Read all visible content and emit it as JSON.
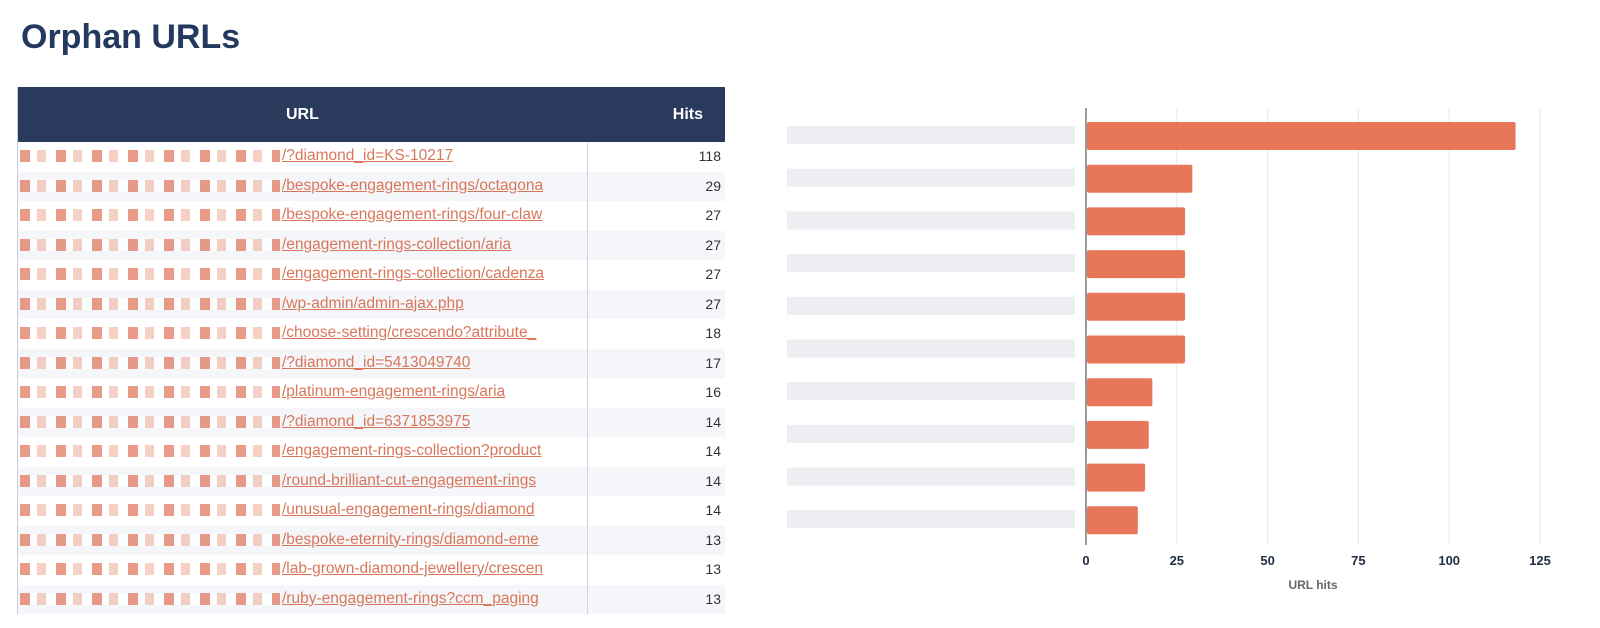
{
  "page_title": "Orphan URLs",
  "table": {
    "headers": {
      "url": "URL",
      "hits": "Hits"
    },
    "rows": [
      {
        "url": "/?diamond_id=KS-10217",
        "hits": "118"
      },
      {
        "url": "/bespoke-engagement-rings/octagona",
        "hits": "29"
      },
      {
        "url": "/bespoke-engagement-rings/four-claw",
        "hits": "27"
      },
      {
        "url": "/engagement-rings-collection/aria",
        "hits": "27"
      },
      {
        "url": "/engagement-rings-collection/cadenza",
        "hits": "27"
      },
      {
        "url": "/wp-admin/admin-ajax.php",
        "hits": "27"
      },
      {
        "url": "/choose-setting/crescendo?attribute_",
        "hits": "18"
      },
      {
        "url": "/?diamond_id=5413049740",
        "hits": "17"
      },
      {
        "url": "/platinum-engagement-rings/aria",
        "hits": "16"
      },
      {
        "url": "/?diamond_id=6371853975",
        "hits": "14"
      },
      {
        "url": "/engagement-rings-collection?product",
        "hits": "14"
      },
      {
        "url": "/round-brilliant-cut-engagement-rings",
        "hits": "14"
      },
      {
        "url": "/unusual-engagement-rings/diamond",
        "hits": "14"
      },
      {
        "url": "/bespoke-eternity-rings/diamond-eme",
        "hits": "13"
      },
      {
        "url": "/lab-grown-diamond-jewellery/crescen",
        "hits": "13"
      },
      {
        "url": "/ruby-engagement-rings?ccm_paging",
        "hits": "13"
      }
    ]
  },
  "colors": {
    "header": "#2a3a5c",
    "bar": "#e8775a",
    "link": "#d9775a",
    "title": "#233a5e"
  },
  "chart_data": {
    "type": "bar",
    "orientation": "horizontal",
    "values": [
      118,
      29,
      27,
      27,
      27,
      27,
      18,
      17,
      16,
      14
    ],
    "xlabel": "URL hits",
    "xlim": [
      0,
      125
    ],
    "xticks": [
      "0",
      "25",
      "50",
      "75",
      "100",
      "125"
    ],
    "grid": true
  }
}
